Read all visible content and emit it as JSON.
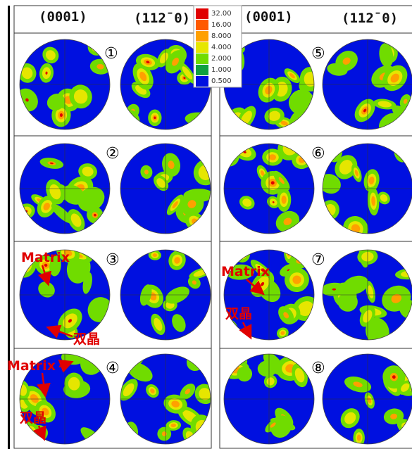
{
  "headers": [
    "(0001)",
    "(112̄ 0)",
    "(0001)",
    "(112̄ 0)"
  ],
  "legend": [
    {
      "label": "32.00",
      "color": "#e00000"
    },
    {
      "label": "16.00",
      "color": "#ff5a00"
    },
    {
      "label": "8.000",
      "color": "#ffa000"
    },
    {
      "label": "4.000",
      "color": "#e6e600"
    },
    {
      "label": "2.000",
      "color": "#70dc00"
    },
    {
      "label": "1.000",
      "color": "#10a040"
    },
    {
      "label": "0.500",
      "color": "#0010e0"
    }
  ],
  "panels": [
    {
      "number": "①"
    },
    {
      "number": "②"
    },
    {
      "number": "③"
    },
    {
      "number": "④"
    },
    {
      "number": "⑤"
    },
    {
      "number": "⑥"
    },
    {
      "number": "⑦"
    },
    {
      "number": "⑧"
    }
  ],
  "annotations": [
    {
      "panel": "③",
      "matrix": "Matrix",
      "twin": "双晶"
    },
    {
      "panel": "④",
      "matrix": "Matrix",
      "twin": "双晶"
    },
    {
      "panel": "⑦",
      "matrix": "Matrix",
      "twin": "双晶"
    }
  ]
}
